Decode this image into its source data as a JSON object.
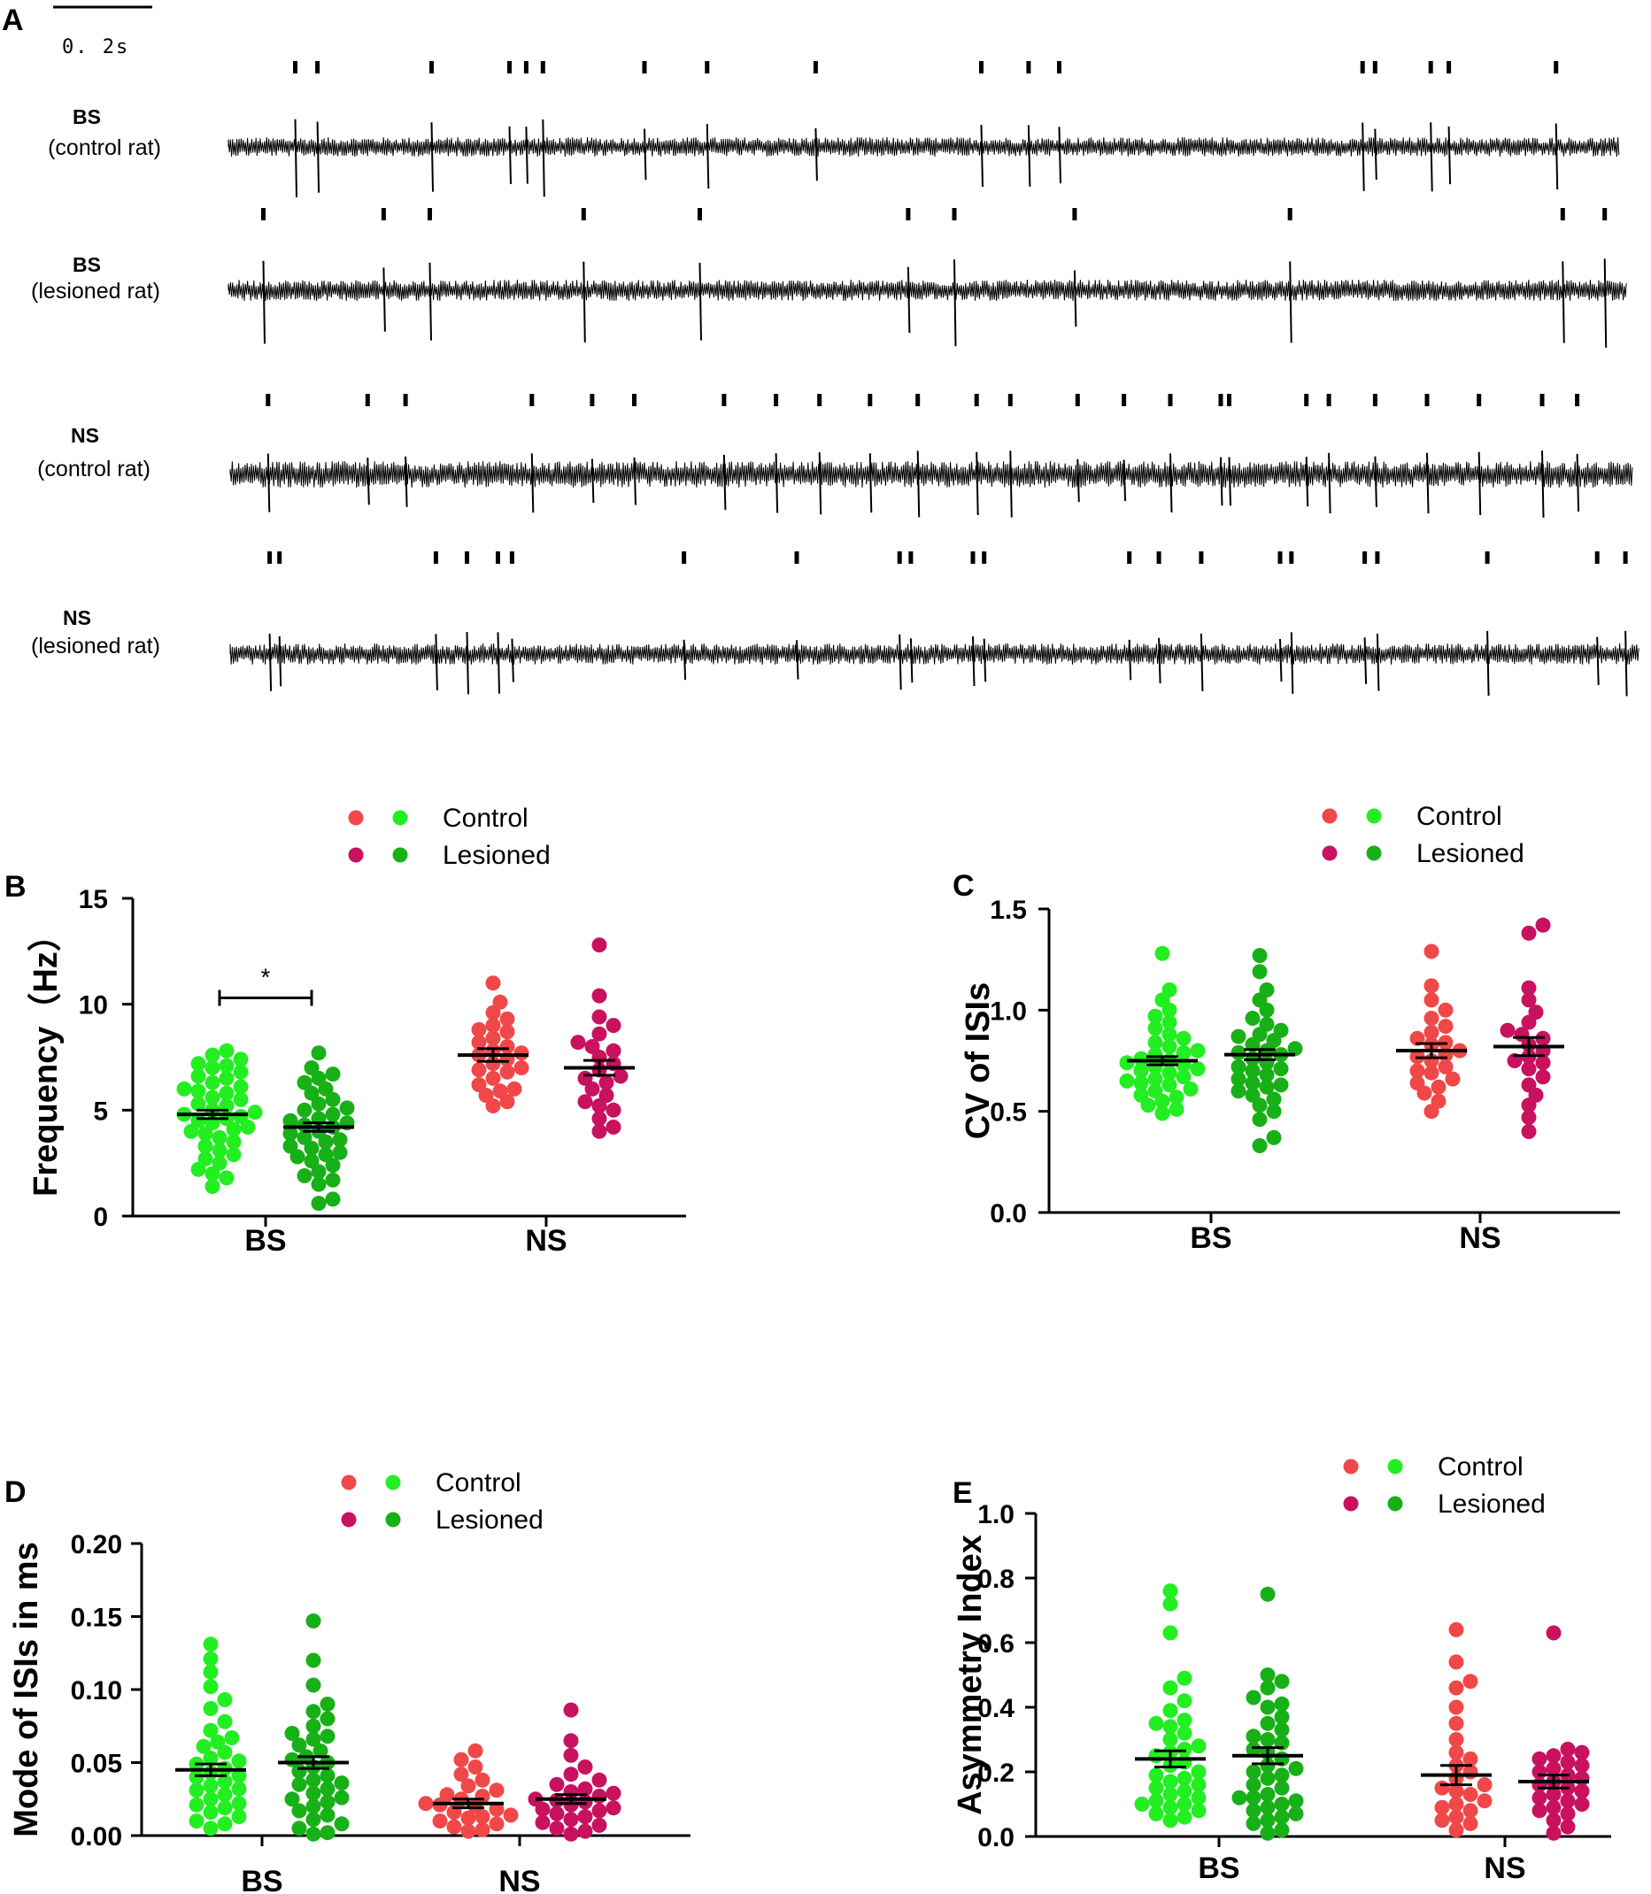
{
  "panel_a": {
    "letter": "A",
    "scale_label": "0. 2s",
    "traces": [
      {
        "type": "BS",
        "condition": "(control rat)",
        "spikes": [
          0.048,
          0.064,
          0.146,
          0.202,
          0.214,
          0.226,
          0.299,
          0.344,
          0.422,
          0.541,
          0.575,
          0.597,
          0.815,
          0.824,
          0.864,
          0.877,
          0.954
        ]
      },
      {
        "type": "BS",
        "condition": "(lesioned rat)",
        "spikes": [
          0.025,
          0.111,
          0.144,
          0.254,
          0.337,
          0.486,
          0.519,
          0.605,
          0.759,
          0.954,
          0.984
        ]
      },
      {
        "type": "NS",
        "condition": "(control rat)",
        "spikes": [
          0.027,
          0.098,
          0.125,
          0.215,
          0.258,
          0.288,
          0.352,
          0.389,
          0.42,
          0.456,
          0.49,
          0.532,
          0.556,
          0.604,
          0.637,
          0.67,
          0.706,
          0.712,
          0.767,
          0.783,
          0.816,
          0.853,
          0.89,
          0.935,
          0.96
        ]
      },
      {
        "type": "NS",
        "condition": "(lesioned rat)",
        "spikes": [
          0.028,
          0.035,
          0.146,
          0.168,
          0.19,
          0.2,
          0.322,
          0.402,
          0.475,
          0.483,
          0.527,
          0.535,
          0.638,
          0.659,
          0.689,
          0.745,
          0.753,
          0.805,
          0.814,
          0.892,
          0.97,
          0.99
        ]
      }
    ]
  },
  "legend": {
    "control": "Control",
    "lesioned": "Lesioned"
  },
  "colors": {
    "bs_control": "#22ee22",
    "bs_lesioned": "#17b017",
    "ns_control": "#f04848",
    "ns_lesioned": "#c8115f"
  },
  "chart_data": [
    {
      "panel": "B",
      "type": "scatter",
      "ylabel": "Frequency（Hz）",
      "ylim": [
        0,
        15
      ],
      "yticks": [
        "0",
        "5",
        "10",
        "15"
      ],
      "ytick_values": [
        0,
        5,
        10,
        15
      ],
      "categories": [
        "BS",
        "NS"
      ],
      "significance": "*",
      "series": [
        {
          "name": "BS Control",
          "group": "BS",
          "condition": "control",
          "mean": 4.8,
          "sem": 0.2,
          "values": [
            7.6,
            7.4,
            7.2,
            7.1,
            7.0,
            6.8,
            6.6,
            6.5,
            6.3,
            6.1,
            6.0,
            5.8,
            5.6,
            5.5,
            5.3,
            5.2,
            5.0,
            4.9,
            4.8,
            4.7,
            4.6,
            4.5,
            4.4,
            4.2,
            4.0,
            3.9,
            3.7,
            3.5,
            3.3,
            3.1,
            2.9,
            2.7,
            2.5,
            2.2,
            2.0,
            1.8,
            1.4,
            7.8,
            5.9,
            4.1
          ]
        },
        {
          "name": "BS Lesioned",
          "group": "BS",
          "condition": "lesioned",
          "mean": 4.2,
          "sem": 0.2,
          "values": [
            7.7,
            7.0,
            6.7,
            6.3,
            6.0,
            5.8,
            5.5,
            5.3,
            5.1,
            5.0,
            4.8,
            4.6,
            4.5,
            4.3,
            4.2,
            4.0,
            3.9,
            3.7,
            3.5,
            3.3,
            3.2,
            3.0,
            2.8,
            2.6,
            2.4,
            2.1,
            1.9,
            1.7,
            1.5,
            0.8,
            0.6,
            6.5,
            4.4,
            3.6,
            2.9
          ]
        },
        {
          "name": "NS Control",
          "group": "NS",
          "condition": "control",
          "mean": 7.6,
          "sem": 0.3,
          "values": [
            11.0,
            10.1,
            9.6,
            9.3,
            9.0,
            8.7,
            8.4,
            8.2,
            8.0,
            7.8,
            7.6,
            7.4,
            7.2,
            7.0,
            6.8,
            6.5,
            6.2,
            6.0,
            5.7,
            5.4,
            5.2,
            8.8,
            7.7,
            6.9,
            5.9
          ]
        },
        {
          "name": "NS Lesioned",
          "group": "NS",
          "condition": "lesioned",
          "mean": 7.0,
          "sem": 0.35,
          "values": [
            12.8,
            10.4,
            9.4,
            9.0,
            8.6,
            8.2,
            7.8,
            7.5,
            7.2,
            6.9,
            6.6,
            6.3,
            6.0,
            5.7,
            5.4,
            5.0,
            4.6,
            4.2,
            4.0,
            8.0,
            6.5,
            5.2
          ]
        }
      ]
    },
    {
      "panel": "C",
      "type": "scatter",
      "ylabel": "CV of ISIs",
      "ylim": [
        0,
        1.5
      ],
      "yticks": [
        "0.0",
        "0.5",
        "1.0",
        "1.5"
      ],
      "ytick_values": [
        0,
        0.5,
        1.0,
        1.5
      ],
      "categories": [
        "BS",
        "NS"
      ],
      "series": [
        {
          "name": "BS Control",
          "group": "BS",
          "condition": "control",
          "mean": 0.75,
          "sem": 0.02,
          "values": [
            1.28,
            1.1,
            1.05,
            1.0,
            0.97,
            0.94,
            0.91,
            0.88,
            0.86,
            0.84,
            0.82,
            0.8,
            0.78,
            0.76,
            0.75,
            0.74,
            0.72,
            0.71,
            0.7,
            0.69,
            0.67,
            0.66,
            0.64,
            0.63,
            0.61,
            0.6,
            0.58,
            0.57,
            0.55,
            0.53,
            0.51,
            0.49,
            0.79,
            0.73,
            0.65
          ]
        },
        {
          "name": "BS Lesioned",
          "group": "BS",
          "condition": "lesioned",
          "mean": 0.78,
          "sem": 0.025,
          "values": [
            1.27,
            1.19,
            1.1,
            1.05,
            1.0,
            0.96,
            0.93,
            0.9,
            0.88,
            0.85,
            0.83,
            0.81,
            0.8,
            0.78,
            0.76,
            0.74,
            0.72,
            0.7,
            0.68,
            0.66,
            0.64,
            0.62,
            0.6,
            0.58,
            0.56,
            0.53,
            0.5,
            0.46,
            0.37,
            0.33,
            0.87,
            0.79,
            0.71,
            0.63
          ]
        },
        {
          "name": "NS Control",
          "group": "NS",
          "condition": "control",
          "mean": 0.8,
          "sem": 0.035,
          "values": [
            1.29,
            1.12,
            1.05,
            1.0,
            0.96,
            0.92,
            0.89,
            0.86,
            0.83,
            0.8,
            0.78,
            0.75,
            0.72,
            0.69,
            0.66,
            0.62,
            0.59,
            0.55,
            0.5,
            0.84,
            0.77,
            0.7,
            0.64
          ]
        },
        {
          "name": "NS Lesioned",
          "group": "NS",
          "condition": "lesioned",
          "mean": 0.82,
          "sem": 0.045,
          "values": [
            1.42,
            1.38,
            1.11,
            1.05,
            0.99,
            0.94,
            0.9,
            0.86,
            0.83,
            0.8,
            0.77,
            0.74,
            0.71,
            0.67,
            0.63,
            0.58,
            0.53,
            0.47,
            0.4,
            0.88,
            0.75
          ]
        }
      ]
    },
    {
      "panel": "D",
      "type": "scatter",
      "ylabel": "Mode of ISIs in ms",
      "ylim": [
        0,
        0.2
      ],
      "yticks": [
        "0.00",
        "0.05",
        "0.10",
        "0.15",
        "0.20"
      ],
      "ytick_values": [
        0,
        0.05,
        0.1,
        0.15,
        0.2
      ],
      "categories": [
        "BS",
        "NS"
      ],
      "series": [
        {
          "name": "BS Control",
          "group": "BS",
          "condition": "control",
          "mean": 0.045,
          "sem": 0.004,
          "values": [
            0.131,
            0.121,
            0.112,
            0.102,
            0.093,
            0.087,
            0.078,
            0.072,
            0.067,
            0.061,
            0.057,
            0.053,
            0.049,
            0.046,
            0.043,
            0.04,
            0.037,
            0.034,
            0.031,
            0.028,
            0.025,
            0.022,
            0.019,
            0.016,
            0.013,
            0.01,
            0.008,
            0.005,
            0.064,
            0.051,
            0.041,
            0.032,
            0.021
          ]
        },
        {
          "name": "BS Lesioned",
          "group": "BS",
          "condition": "lesioned",
          "mean": 0.05,
          "sem": 0.004,
          "values": [
            0.147,
            0.12,
            0.103,
            0.09,
            0.085,
            0.08,
            0.075,
            0.07,
            0.066,
            0.062,
            0.058,
            0.054,
            0.05,
            0.047,
            0.044,
            0.041,
            0.038,
            0.035,
            0.032,
            0.029,
            0.026,
            0.023,
            0.02,
            0.017,
            0.014,
            0.011,
            0.008,
            0.005,
            0.002,
            0.001,
            0.068,
            0.052,
            0.036,
            0.025
          ]
        },
        {
          "name": "NS Control",
          "group": "NS",
          "condition": "control",
          "mean": 0.022,
          "sem": 0.003,
          "values": [
            0.058,
            0.052,
            0.047,
            0.042,
            0.038,
            0.034,
            0.031,
            0.028,
            0.025,
            0.022,
            0.02,
            0.018,
            0.016,
            0.014,
            0.012,
            0.01,
            0.008,
            0.006,
            0.004,
            0.003,
            0.027,
            0.021,
            0.013
          ]
        },
        {
          "name": "NS Lesioned",
          "group": "NS",
          "condition": "lesioned",
          "mean": 0.025,
          "sem": 0.003,
          "values": [
            0.086,
            0.065,
            0.055,
            0.047,
            0.042,
            0.038,
            0.035,
            0.032,
            0.029,
            0.027,
            0.025,
            0.023,
            0.021,
            0.019,
            0.017,
            0.015,
            0.013,
            0.011,
            0.009,
            0.007,
            0.005,
            0.003,
            0.001,
            0.03,
            0.024,
            0.018
          ]
        }
      ]
    },
    {
      "panel": "E",
      "type": "scatter",
      "ylabel": "Asymmetry Index",
      "ylim": [
        0,
        1.0
      ],
      "yticks": [
        "0.0",
        "0.2",
        "0.4",
        "0.6",
        "0.8",
        "1.0"
      ],
      "ytick_values": [
        0,
        0.2,
        0.4,
        0.6,
        0.8,
        1.0
      ],
      "categories": [
        "BS",
        "NS"
      ],
      "series": [
        {
          "name": "BS Control",
          "group": "BS",
          "condition": "control",
          "mean": 0.24,
          "sem": 0.025,
          "values": [
            0.76,
            0.72,
            0.63,
            0.49,
            0.46,
            0.42,
            0.39,
            0.36,
            0.34,
            0.32,
            0.3,
            0.28,
            0.26,
            0.25,
            0.23,
            0.22,
            0.2,
            0.19,
            0.18,
            0.16,
            0.15,
            0.14,
            0.13,
            0.12,
            0.11,
            0.1,
            0.09,
            0.08,
            0.07,
            0.06,
            0.05,
            0.35,
            0.27,
            0.17,
            0.1
          ]
        },
        {
          "name": "BS Lesioned",
          "group": "BS",
          "condition": "lesioned",
          "mean": 0.25,
          "sem": 0.025,
          "values": [
            0.75,
            0.5,
            0.48,
            0.46,
            0.43,
            0.4,
            0.37,
            0.35,
            0.33,
            0.31,
            0.29,
            0.27,
            0.26,
            0.24,
            0.22,
            0.21,
            0.19,
            0.18,
            0.16,
            0.15,
            0.13,
            0.12,
            0.11,
            0.1,
            0.09,
            0.08,
            0.07,
            0.06,
            0.05,
            0.04,
            0.02,
            0.01,
            0.41,
            0.3,
            0.2,
            0.12
          ]
        },
        {
          "name": "NS Control",
          "group": "NS",
          "condition": "control",
          "mean": 0.19,
          "sem": 0.03,
          "values": [
            0.64,
            0.54,
            0.48,
            0.46,
            0.4,
            0.35,
            0.3,
            0.26,
            0.24,
            0.22,
            0.2,
            0.18,
            0.16,
            0.15,
            0.13,
            0.11,
            0.1,
            0.09,
            0.08,
            0.06,
            0.05,
            0.04,
            0.02,
            0.14
          ]
        },
        {
          "name": "NS Lesioned",
          "group": "NS",
          "condition": "lesioned",
          "mean": 0.17,
          "sem": 0.02,
          "values": [
            0.63,
            0.27,
            0.26,
            0.25,
            0.24,
            0.23,
            0.22,
            0.21,
            0.2,
            0.19,
            0.18,
            0.17,
            0.16,
            0.15,
            0.14,
            0.13,
            0.12,
            0.11,
            0.1,
            0.09,
            0.08,
            0.07,
            0.05,
            0.03,
            0.01
          ]
        }
      ]
    }
  ]
}
